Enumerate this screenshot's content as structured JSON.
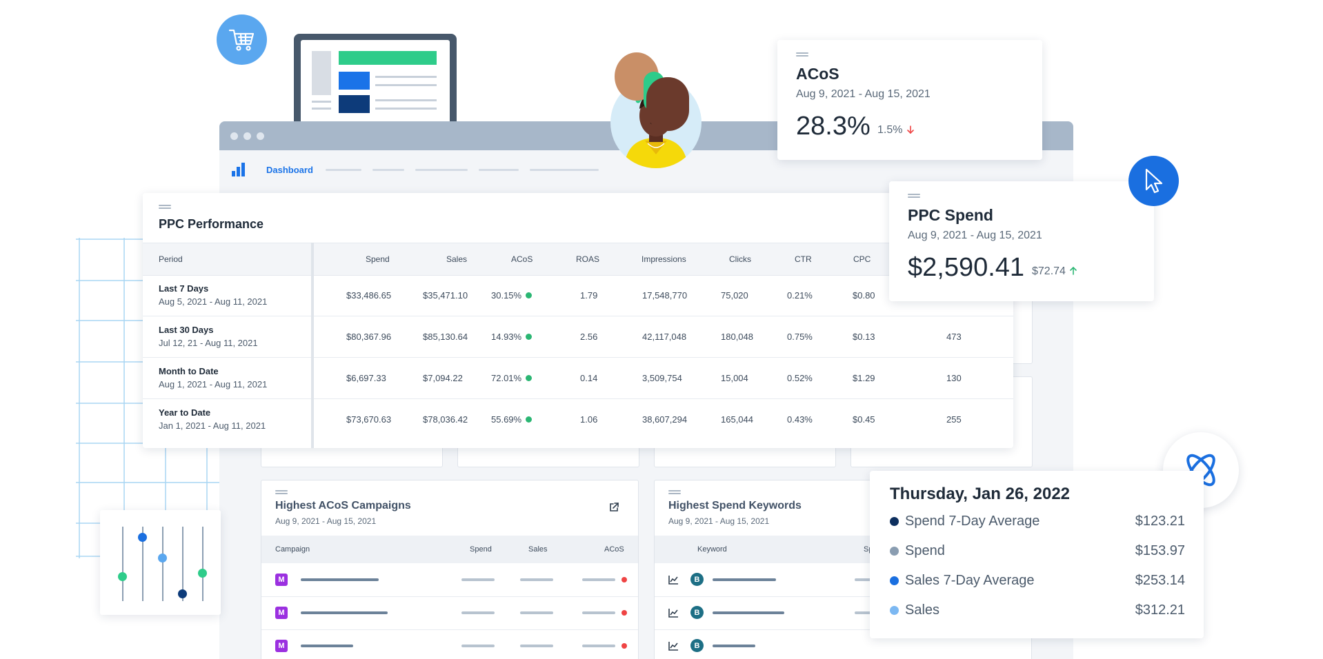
{
  "nav": {
    "dashboard_label": "Dashboard"
  },
  "ppc_performance": {
    "title": "PPC Performance",
    "columns": [
      "Period",
      "Spend",
      "Sales",
      "ACoS",
      "ROAS",
      "Impressions",
      "Clicks",
      "CTR",
      "CPC"
    ],
    "rows": [
      {
        "period": "Last 7 Days",
        "range": "Aug 5, 2021 - Aug 11, 2021",
        "spend": "$33,486.65",
        "sales": "$35,471.10",
        "acos": "30.15%",
        "roas": "1.79",
        "impressions": "17,548,770",
        "clicks": "75,020",
        "ctr": "0.21%",
        "cpc": "$0.80",
        "extra": ""
      },
      {
        "period": "Last 30 Days",
        "range": "Jul 12, 21 - Aug 11, 2021",
        "spend": "$80,367.96",
        "sales": "$85,130.64",
        "acos": "14.93%",
        "roas": "2.56",
        "impressions": "42,117,048",
        "clicks": "180,048",
        "ctr": "0.75%",
        "cpc": "$0.13",
        "extra": "473"
      },
      {
        "period": "Month to Date",
        "range": "Aug 1, 2021 - Aug 11, 2021",
        "spend": "$6,697.33",
        "sales": "$7,094.22",
        "acos": "72.01%",
        "roas": "0.14",
        "impressions": "3,509,754",
        "clicks": "15,004",
        "ctr": "0.52%",
        "cpc": "$1.29",
        "extra": "130"
      },
      {
        "period": "Year to Date",
        "range": "Jan 1, 2021 - Aug 11, 2021",
        "spend": "$73,670.63",
        "sales": "$78,036.42",
        "acos": "55.69%",
        "roas": "1.06",
        "impressions": "38,607,294",
        "clicks": "165,044",
        "ctr": "0.43%",
        "cpc": "$0.45",
        "extra": "255"
      }
    ],
    "status_color": "#2bb673"
  },
  "acos_card": {
    "title": "ACoS",
    "range": "Aug 9, 2021 - Aug 15, 2021",
    "value": "28.3%",
    "delta": "1.5%",
    "delta_icon": "arrow-down-icon",
    "delta_color": "#ef4444"
  },
  "spend_card": {
    "title": "PPC Spend",
    "range": "Aug 9, 2021 - Aug 15, 2021",
    "value": "$2,590.41",
    "delta": "$72.74",
    "delta_icon": "arrow-up-icon",
    "delta_color": "#2bb673"
  },
  "tooltip": {
    "date": "Thursday, Jan 26, 2022",
    "items": [
      {
        "label": "Spend 7-Day Average",
        "value": "$123.21",
        "color": "#0d2f5e"
      },
      {
        "label": "Spend",
        "value": "$153.97",
        "color": "#8a9db1"
      },
      {
        "label": "Sales 7-Day Average",
        "value": "$253.14",
        "color": "#1a6fe0"
      },
      {
        "label": "Sales",
        "value": "$312.21",
        "color": "#7cb8f2"
      }
    ]
  },
  "campaigns_panel": {
    "title": "Highest ACoS Campaigns",
    "range": "Aug 9, 2021 - Aug 15, 2021",
    "columns": [
      "Campaign",
      "Spend",
      "Sales",
      "ACoS"
    ],
    "badge": "M"
  },
  "keywords_panel": {
    "title": "Highest Spend Keywords",
    "range": "Aug 9, 2021 - Aug 15, 2021",
    "columns": [
      "Keyword",
      "Sp"
    ],
    "badge": "B"
  },
  "icons": {
    "cart": "shopping-cart-icon",
    "cursor": "cursor-arrow-icon",
    "brand": "atom-logo-icon",
    "external": "external-link-icon",
    "trend": "trend-chart-icon"
  },
  "colors": {
    "accent": "#1a73e8",
    "cart_bubble": "#5aa7ef",
    "browser_bar": "#a7b7c9"
  }
}
